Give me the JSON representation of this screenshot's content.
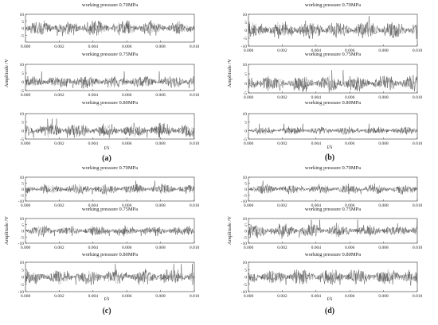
{
  "figure": {
    "x_axis_label": "t/s",
    "y_axis_label": "Amplitude /V"
  },
  "chart_data": [
    {
      "panel": "(a)",
      "type": "line",
      "x_tick_labels": [
        "0.000",
        "0.002",
        "0.004",
        "0.006",
        "0.008",
        "0.010"
      ],
      "xlim": [
        0,
        0.01
      ],
      "plots": [
        {
          "title": "working pressure 0.70MPa",
          "ylim": [
            -10,
            10
          ],
          "y_tick_labels": [
            "10",
            "5",
            "0",
            "-5"
          ],
          "peak_amplitude": 9
        },
        {
          "title": "working pressure 0.75MPa",
          "ylim": [
            -5,
            10
          ],
          "y_tick_labels": [
            "10",
            "5",
            "0",
            "-5"
          ],
          "peak_amplitude": 6
        },
        {
          "title": "working pressure 0.80MPa",
          "ylim": [
            -5,
            10
          ],
          "y_tick_labels": [
            "10",
            "5",
            "0",
            "-5"
          ],
          "peak_amplitude": 7
        }
      ]
    },
    {
      "panel": "(b)",
      "type": "line",
      "x_tick_labels": [
        "0.000",
        "0.002",
        "0.004",
        "0.006",
        "0.008",
        "0.010"
      ],
      "xlim": [
        0,
        0.01
      ],
      "plots": [
        {
          "title": "working pressure 0.70MPa",
          "ylim": [
            -10,
            10
          ],
          "y_tick_labels": [
            "10",
            "5",
            "0",
            "-5",
            "-10"
          ],
          "peak_amplitude": 9
        },
        {
          "title": "working pressure 0.75MPa",
          "ylim": [
            -5,
            10
          ],
          "y_tick_labels": [
            "10",
            "5",
            "0",
            "-5"
          ],
          "peak_amplitude": 7
        },
        {
          "title": "working pressure 0.80MPa",
          "ylim": [
            -5,
            10
          ],
          "y_tick_labels": [
            "10",
            "5",
            "0",
            "-5"
          ],
          "peak_amplitude": 4
        }
      ]
    },
    {
      "panel": "(c)",
      "type": "line",
      "x_tick_labels": [
        "0.000",
        "0.002",
        "0.004",
        "0.006",
        "0.008",
        "0.010"
      ],
      "xlim": [
        0,
        0.01
      ],
      "plots": [
        {
          "title": "working pressure 0.70MPa",
          "ylim": [
            -10,
            10
          ],
          "y_tick_labels": [
            "10",
            "5",
            "0",
            "-5",
            "-10"
          ],
          "peak_amplitude": 7
        },
        {
          "title": "working pressure 0.75MPa",
          "ylim": [
            -10,
            10
          ],
          "y_tick_labels": [
            "10",
            "5",
            "0",
            "-5",
            "-10"
          ],
          "peak_amplitude": 7
        },
        {
          "title": "working pressure 0.80MPa",
          "ylim": [
            -10,
            10
          ],
          "y_tick_labels": [
            "10",
            "5",
            "0",
            "-5",
            "-10"
          ],
          "peak_amplitude": 9
        }
      ]
    },
    {
      "panel": "(d)",
      "type": "line",
      "x_tick_labels": [
        "0.000",
        "0.002",
        "0.004",
        "0.006",
        "0.008",
        "0.010"
      ],
      "xlim": [
        0,
        0.01
      ],
      "plots": [
        {
          "title": "working pressure 0.70MPa",
          "ylim": [
            -10,
            10
          ],
          "y_tick_labels": [
            "10",
            "5",
            "0",
            "-5",
            "-10"
          ],
          "peak_amplitude": 7
        },
        {
          "title": "working pressure 0.75MPa",
          "ylim": [
            -10,
            10
          ],
          "y_tick_labels": [
            "10",
            "5",
            "0",
            "-5",
            "-10"
          ],
          "peak_amplitude": 9
        },
        {
          "title": "working pressure 0.80MPa",
          "ylim": [
            -10,
            10
          ],
          "y_tick_labels": [
            "10",
            "5",
            "0",
            "-5",
            "-10"
          ],
          "peak_amplitude": 9
        }
      ]
    }
  ]
}
